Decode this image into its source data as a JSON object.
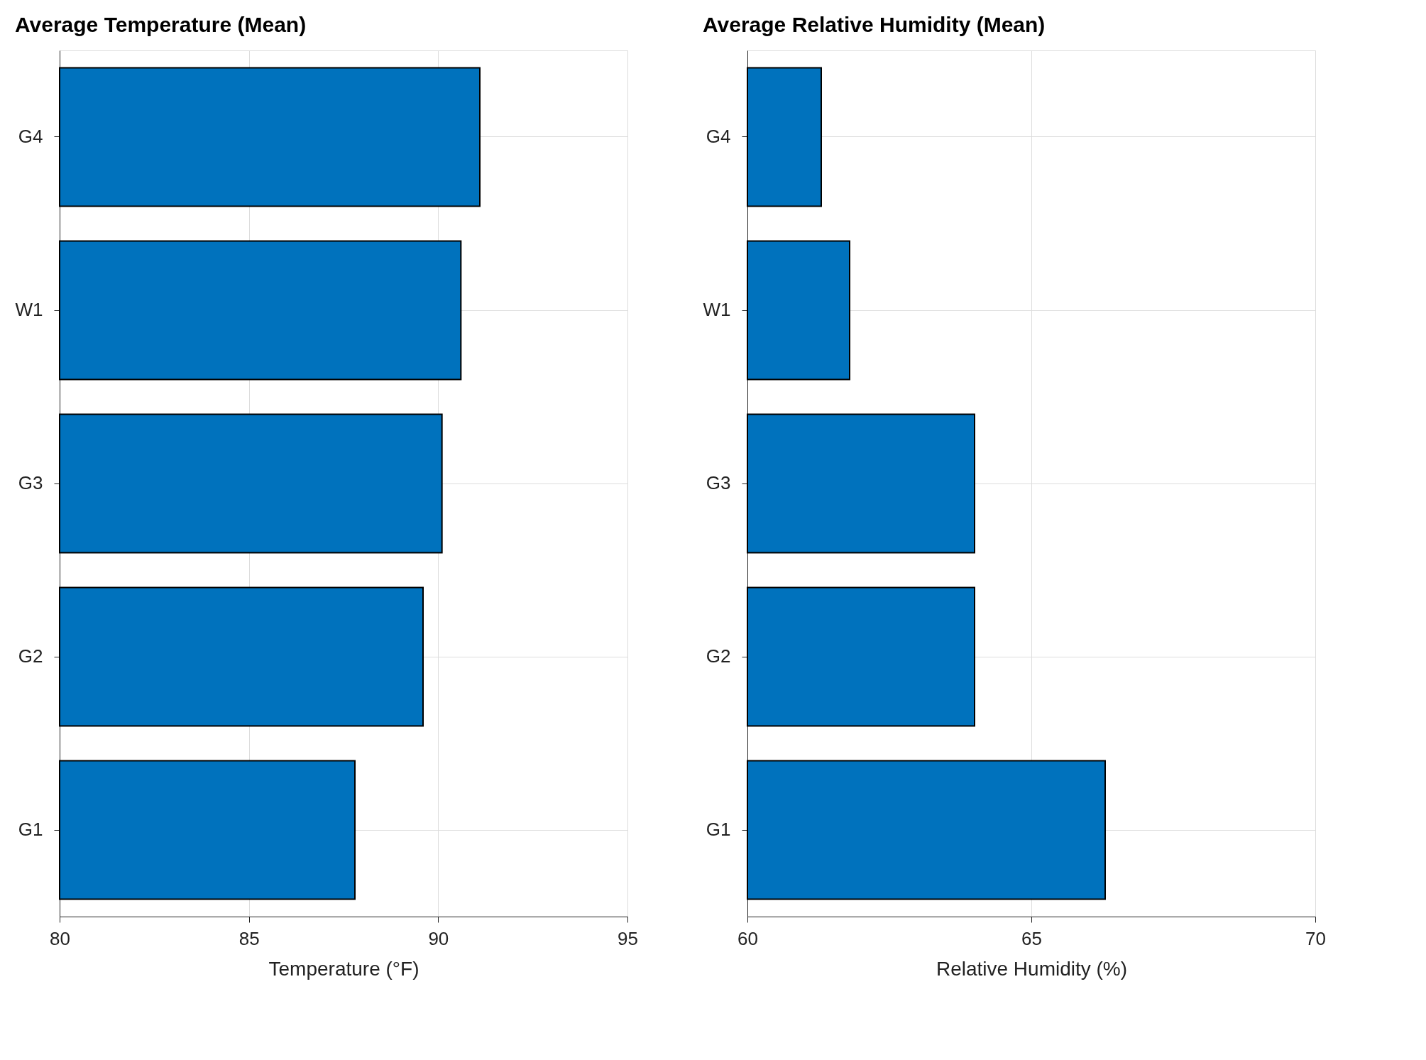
{
  "chart_data": [
    {
      "type": "bar",
      "orientation": "horizontal",
      "title": "Average Temperature (Mean)",
      "xlabel": "Temperature (°F)",
      "categories": [
        "G4",
        "W1",
        "G3",
        "G2",
        "G1"
      ],
      "values": [
        91.1,
        90.6,
        90.1,
        89.6,
        87.8
      ],
      "color": "#0072bd",
      "xlim": [
        80,
        95
      ],
      "xticks": [
        80,
        85,
        90,
        95
      ],
      "grid": true
    },
    {
      "type": "bar",
      "orientation": "horizontal",
      "title": "Average Relative Humidity (Mean)",
      "xlabel": "Relative Humidity (%)",
      "categories": [
        "G4",
        "W1",
        "G3",
        "G2",
        "G1"
      ],
      "values": [
        61.3,
        61.8,
        64.0,
        64.0,
        66.3
      ],
      "color": "#0072bd",
      "xlim": [
        60,
        70
      ],
      "xticks": [
        60,
        65,
        70
      ],
      "grid": true
    }
  ]
}
